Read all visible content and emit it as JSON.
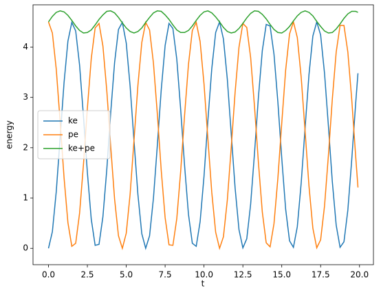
{
  "chart_data": {
    "type": "line",
    "x_label": "t",
    "y_label": "energy",
    "x": [
      0,
      0.25,
      0.5,
      0.75,
      1,
      1.25,
      1.5,
      1.75,
      2,
      2.25,
      2.5,
      2.75,
      3,
      3.25,
      3.5,
      3.75,
      4,
      4.25,
      4.5,
      4.75,
      5,
      5.25,
      5.5,
      5.75,
      6,
      6.25,
      6.5,
      6.75,
      7,
      7.25,
      7.5,
      7.75,
      8,
      8.25,
      8.5,
      8.75,
      9,
      9.25,
      9.5,
      9.75,
      10,
      10.25,
      10.5,
      10.75,
      11,
      11.25,
      11.5,
      11.75,
      12,
      12.25,
      12.5,
      12.75,
      13,
      13.25,
      13.5,
      13.75,
      14,
      14.25,
      14.5,
      14.75,
      15,
      15.25,
      15.5,
      15.75,
      16,
      16.25,
      16.5,
      16.75,
      17,
      17.25,
      17.5,
      17.75,
      18,
      18.25,
      18.5,
      18.75,
      19,
      19.25,
      19.5,
      19.75,
      19.9
    ],
    "series": [
      {
        "name": "ke",
        "color": "#1f77b4",
        "values": [
          0,
          0.33,
          1.13,
          2.2,
          3.29,
          4.12,
          4.49,
          4.32,
          3.64,
          2.62,
          1.51,
          0.58,
          0.06,
          0.08,
          0.63,
          1.57,
          2.69,
          3.69,
          4.35,
          4.49,
          4.08,
          3.22,
          2.13,
          1.07,
          0.29,
          0,
          0.25,
          1,
          2.05,
          3.15,
          4.03,
          4.47,
          4.37,
          3.76,
          2.76,
          1.65,
          0.68,
          0.1,
          0.04,
          0.53,
          1.43,
          2.54,
          3.57,
          4.29,
          4.5,
          4.16,
          3.36,
          2.28,
          1.2,
          0.37,
          0.01,
          0.19,
          0.88,
          1.9,
          3.01,
          3.93,
          4.45,
          4.42,
          3.86,
          2.91,
          1.79,
          0.78,
          0.15,
          0.02,
          0.43,
          1.3,
          2.39,
          3.45,
          4.22,
          4.5,
          4.24,
          3.48,
          2.43,
          1.33,
          0.46,
          0.02,
          0.13,
          0.76,
          1.76,
          2.87,
          3.48
        ]
      },
      {
        "name": "pe",
        "color": "#ff7f0e",
        "values": [
          4.5,
          4.28,
          3.56,
          2.52,
          1.41,
          0.51,
          0.04,
          0.1,
          0.7,
          1.67,
          2.78,
          3.77,
          4.38,
          4.47,
          4.02,
          3.13,
          2.03,
          0.98,
          0.25,
          0,
          0.3,
          1.08,
          2.15,
          3.24,
          4.09,
          4.49,
          4.34,
          3.68,
          2.67,
          1.55,
          0.61,
          0.07,
          0.06,
          0.59,
          1.53,
          2.64,
          3.65,
          4.33,
          4.49,
          4.11,
          3.27,
          2.18,
          1.11,
          0.32,
          0,
          0.23,
          0.96,
          2,
          3.1,
          4,
          4.47,
          4.39,
          3.79,
          2.81,
          1.7,
          0.72,
          0.11,
          0.03,
          0.49,
          1.39,
          2.49,
          3.54,
          4.26,
          4.5,
          4.19,
          3.4,
          2.33,
          1.24,
          0.4,
          0.01,
          0.17,
          0.84,
          1.85,
          2.96,
          3.9,
          4.43,
          4.43,
          3.9,
          2.96,
          1.84,
          1.21
        ]
      },
      {
        "name": "ke+pe",
        "color": "#2ca02c",
        "values": [
          4.5,
          4.61,
          4.69,
          4.72,
          4.7,
          4.63,
          4.53,
          4.42,
          4.33,
          4.28,
          4.29,
          4.34,
          4.44,
          4.55,
          4.64,
          4.71,
          4.72,
          4.68,
          4.59,
          4.48,
          4.38,
          4.31,
          4.28,
          4.31,
          4.38,
          4.49,
          4.59,
          4.68,
          4.72,
          4.71,
          4.64,
          4.55,
          4.44,
          4.34,
          4.29,
          4.29,
          4.33,
          4.42,
          4.53,
          4.63,
          4.7,
          4.72,
          4.68,
          4.6,
          4.5,
          4.39,
          4.31,
          4.28,
          4.3,
          4.37,
          4.47,
          4.58,
          4.67,
          4.72,
          4.71,
          4.65,
          4.56,
          4.45,
          4.35,
          4.29,
          4.28,
          4.33,
          4.41,
          4.52,
          4.62,
          4.69,
          4.72,
          4.69,
          4.62,
          4.51,
          4.41,
          4.32,
          4.28,
          4.29,
          4.36,
          4.46,
          4.57,
          4.66,
          4.71,
          4.71,
          4.69
        ]
      }
    ],
    "xlim": [
      -0.995,
      20.895
    ],
    "ylim": [
      -0.325,
      4.84
    ],
    "xticks": [
      {
        "value": 0,
        "label": "0.0"
      },
      {
        "value": 2.5,
        "label": "2.5"
      },
      {
        "value": 5,
        "label": "5.0"
      },
      {
        "value": 7.5,
        "label": "7.5"
      },
      {
        "value": 10,
        "label": "10.0"
      },
      {
        "value": 12.5,
        "label": "12.5"
      },
      {
        "value": 15,
        "label": "15.0"
      },
      {
        "value": 17.5,
        "label": "17.5"
      },
      {
        "value": 20,
        "label": "20.0"
      }
    ],
    "yticks": [
      0,
      1,
      2,
      3,
      4
    ],
    "legend": "center left"
  }
}
